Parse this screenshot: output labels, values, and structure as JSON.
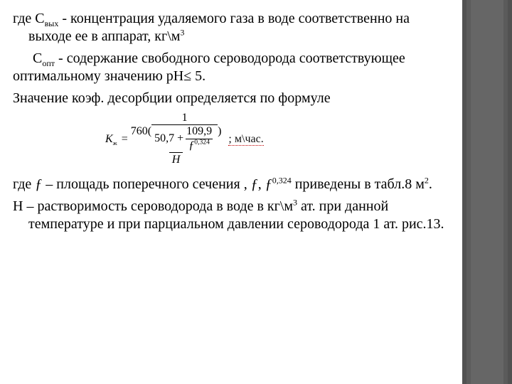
{
  "colors": {
    "text": "#000000",
    "background": "#ffffff",
    "ornament_outer": "#515151",
    "ornament_mid": "#5b5b5b",
    "ornament_inner": "#666666",
    "error_underline": "#c00000"
  },
  "typography": {
    "family": "Times New Roman",
    "body_size_pt": 20,
    "formula_size_pt": 16
  },
  "p1": {
    "pre": "где С",
    "sub": "вых",
    "post": "  - концентрация удаляемого газа в воде соответственно на выходе ее в аппарат, кг\\м",
    "sup": "3"
  },
  "p2": {
    "pre": "С",
    "sub": "опт",
    "dash": "   - ",
    "post": "содержание свободного сероводорода соответствующее оптимальному значению рН≤ 5."
  },
  "p3": "Значение коэф. десорбции определяется по формуле",
  "formula": {
    "lhs_sym": "К",
    "lhs_sub": "ж",
    "equals": " = ",
    "outer_num_prefix": "760(",
    "inner1_num": "1",
    "inner1_den_left": "50,7 + ",
    "inner2_num": "109,9",
    "inner2_den_base": "ƒ",
    "inner2_den_exp": "0,324",
    "outer_num_suffix": ")",
    "outer_den": "Н",
    "tail": " ; м\\час."
  },
  "p4": {
    "a": "где ",
    "f": "ƒ",
    "b": " – площадь поперечного сечения , ",
    "f2": "ƒ",
    "comma": ", ",
    "f3": "ƒ",
    "exp": "0,324",
    "c": " приведены в табл.8 м",
    "sup": "2",
    "dot": "."
  },
  "p5": {
    "a": "Н – растворимость сероводорода в воде в кг\\м",
    "sup": "3",
    "b": " ат. при данной температуре и при парциальном давлении сероводорода 1 ат. рис.13."
  }
}
